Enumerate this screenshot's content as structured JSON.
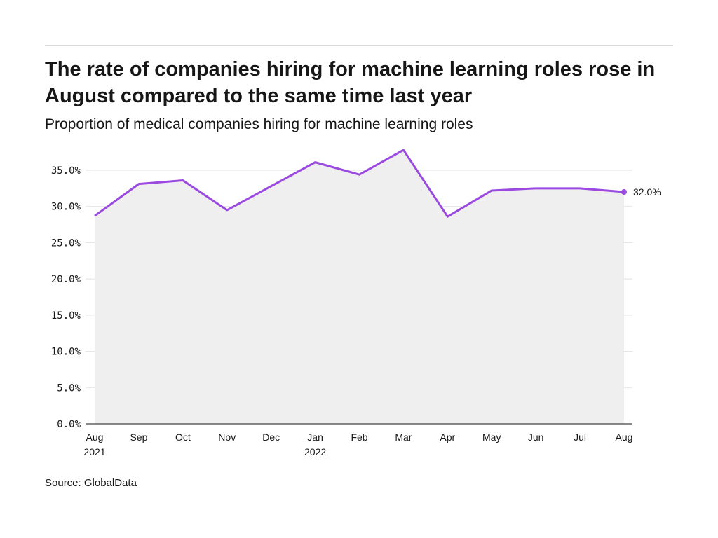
{
  "header": {
    "title": "The rate of companies hiring for machine learning roles rose in August compared to the same time last year",
    "subtitle": "Proportion of medical companies hiring for machine learning roles"
  },
  "footer": {
    "source": "Source: GlobalData"
  },
  "colors": {
    "line": "#9b4ae0",
    "area": "#efefef",
    "grid": "#e0e0e0",
    "axis": "#161616"
  },
  "chart_data": {
    "type": "area",
    "title": "The rate of companies hiring for machine learning roles rose in August compared to the same time last year",
    "subtitle": "Proportion of medical companies hiring for machine learning roles",
    "categories": [
      "Aug 2021",
      "Sep",
      "Oct",
      "Nov",
      "Dec",
      "Jan 2022",
      "Feb",
      "Mar",
      "Apr",
      "May",
      "Jun",
      "Jul",
      "Aug"
    ],
    "x_tick_labels": [
      [
        "Aug",
        "2021"
      ],
      [
        "Sep"
      ],
      [
        "Oct"
      ],
      [
        "Nov"
      ],
      [
        "Dec"
      ],
      [
        "Jan",
        "2022"
      ],
      [
        "Feb"
      ],
      [
        "Mar"
      ],
      [
        "Apr"
      ],
      [
        "May"
      ],
      [
        "Jun"
      ],
      [
        "Jul"
      ],
      [
        "Aug"
      ]
    ],
    "series": [
      {
        "values": [
          28.7,
          33.1,
          33.6,
          29.5,
          32.8,
          36.1,
          34.4,
          37.8,
          28.6,
          32.2,
          32.5,
          32.5,
          32.0
        ]
      }
    ],
    "y_ticks": [
      0,
      5,
      10,
      15,
      20,
      25,
      30,
      35
    ],
    "y_tick_labels": [
      "0.0%",
      "5.0%",
      "10.0%",
      "15.0%",
      "20.0%",
      "25.0%",
      "30.0%",
      "35.0%"
    ],
    "ylim": [
      0,
      35
    ],
    "end_label": "32.0%",
    "grid": true,
    "xlabel": "",
    "ylabel": ""
  }
}
